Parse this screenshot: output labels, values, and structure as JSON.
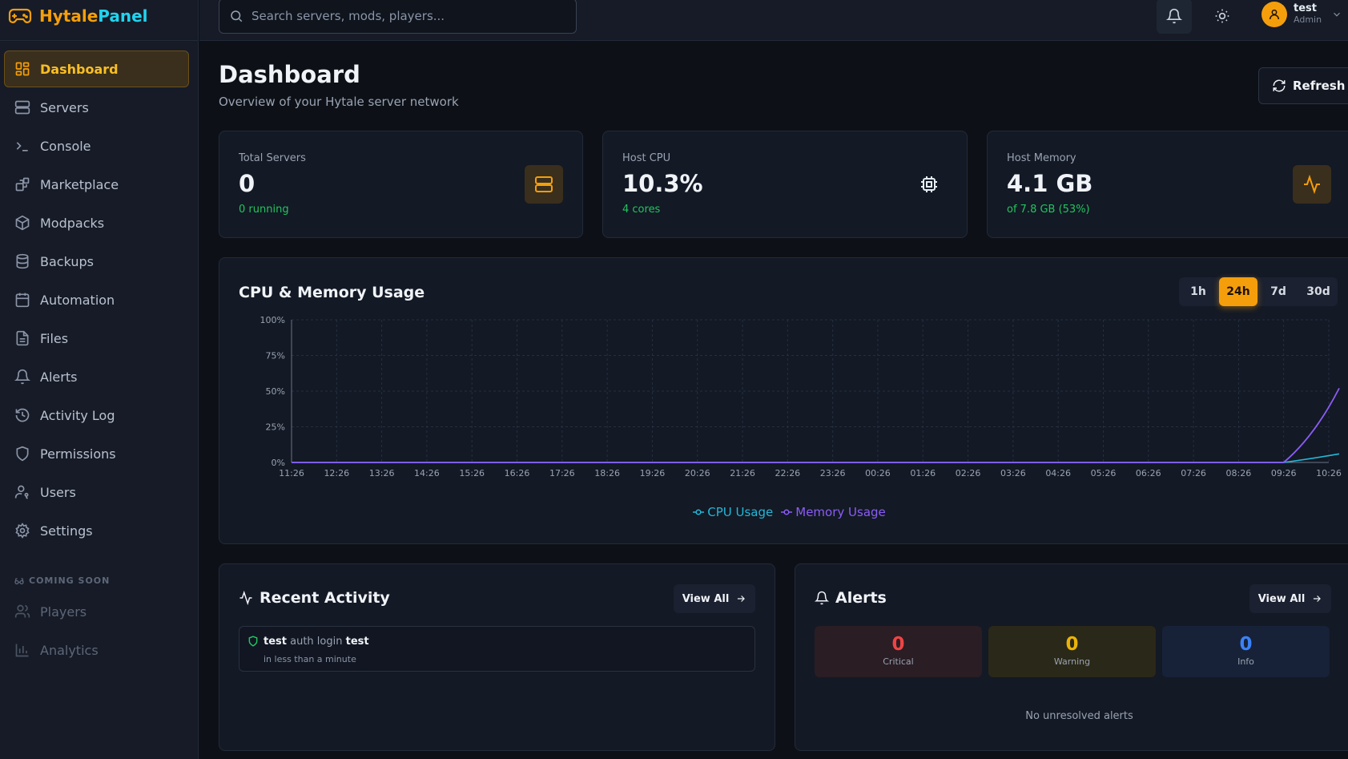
{
  "brand": {
    "part1": "Hytale",
    "part2": "Panel"
  },
  "search": {
    "placeholder": "Search servers, mods, players..."
  },
  "user": {
    "name": "test",
    "role": "Admin"
  },
  "nav": [
    {
      "label": "Dashboard",
      "icon": "dashboard-icon",
      "active": true
    },
    {
      "label": "Servers",
      "icon": "server-icon"
    },
    {
      "label": "Console",
      "icon": "terminal-icon"
    },
    {
      "label": "Marketplace",
      "icon": "blocks-icon"
    },
    {
      "label": "Modpacks",
      "icon": "package-icon"
    },
    {
      "label": "Backups",
      "icon": "database-icon"
    },
    {
      "label": "Automation",
      "icon": "calendar-icon"
    },
    {
      "label": "Files",
      "icon": "file-icon"
    },
    {
      "label": "Alerts",
      "icon": "bell-icon"
    },
    {
      "label": "Activity Log",
      "icon": "history-icon"
    },
    {
      "label": "Permissions",
      "icon": "shield-icon"
    },
    {
      "label": "Users",
      "icon": "user-key-icon"
    },
    {
      "label": "Settings",
      "icon": "gear-icon"
    }
  ],
  "coming_soon": {
    "label": "COMING SOON",
    "items": [
      {
        "label": "Players",
        "icon": "users-icon"
      },
      {
        "label": "Analytics",
        "icon": "bar-chart-icon"
      }
    ]
  },
  "page": {
    "title": "Dashboard",
    "subtitle": "Overview of your Hytale server network",
    "refresh_label": "Refresh"
  },
  "stats": [
    {
      "label": "Total Servers",
      "value": "0",
      "sub": "0 running",
      "icon": "server-icon"
    },
    {
      "label": "Host CPU",
      "value": "10.3%",
      "sub": "4 cores",
      "icon": "cpu-icon"
    },
    {
      "label": "Host Memory",
      "value": "4.1 GB",
      "sub": "of 7.8 GB (53%)",
      "icon": "activity-icon"
    }
  ],
  "usage_chart": {
    "title": "CPU & Memory Usage",
    "ranges": [
      "1h",
      "24h",
      "7d",
      "30d"
    ],
    "active_range": "24h"
  },
  "chart_data": {
    "type": "line",
    "title": "CPU & Memory Usage",
    "xlabel": "",
    "ylabel": "",
    "x": [
      "11:26",
      "12:26",
      "13:26",
      "14:26",
      "15:26",
      "16:26",
      "17:26",
      "18:26",
      "19:26",
      "20:26",
      "21:26",
      "22:26",
      "23:26",
      "00:26",
      "01:26",
      "02:26",
      "03:26",
      "04:26",
      "05:26",
      "06:26",
      "07:26",
      "08:26",
      "09:26",
      "10:26"
    ],
    "yticks": [
      "0%",
      "25%",
      "50%",
      "75%",
      "100%"
    ],
    "ylim": [
      0,
      100
    ],
    "grid": true,
    "legend_position": "bottom",
    "series": [
      {
        "name": "CPU Usage",
        "color": "#22b8d8",
        "values": [
          0,
          0,
          0,
          0,
          0,
          0,
          0,
          0,
          0,
          0,
          0,
          0,
          0,
          0,
          0,
          0,
          0,
          0,
          0,
          0,
          0,
          0,
          0,
          3
        ],
        "last": 6
      },
      {
        "name": "Memory Usage",
        "color": "#8b5cf6",
        "values": [
          0,
          0,
          0,
          0,
          0,
          0,
          0,
          0,
          0,
          0,
          0,
          0,
          0,
          0,
          0,
          0,
          0,
          0,
          0,
          0,
          0,
          0,
          0,
          18
        ],
        "last": 52
      }
    ]
  },
  "activity": {
    "title": "Recent Activity",
    "view_all": "View All",
    "items": [
      {
        "user": "test",
        "action": "auth login",
        "target": "test",
        "time": "in less than a minute"
      }
    ]
  },
  "alerts": {
    "title": "Alerts",
    "view_all": "View All",
    "counts": [
      {
        "value": "0",
        "label": "Critical",
        "color": "#ef4444",
        "bg": "#2a1d24"
      },
      {
        "value": "0",
        "label": "Warning",
        "color": "#eab308",
        "bg": "#2a2818"
      },
      {
        "value": "0",
        "label": "Info",
        "color": "#3b82f6",
        "bg": "#172238"
      }
    ],
    "empty_text": "No unresolved alerts"
  }
}
